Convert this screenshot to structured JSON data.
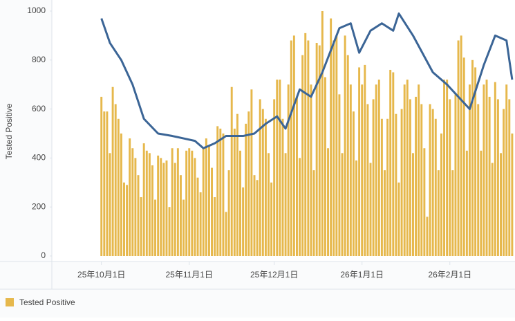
{
  "chart_data": {
    "type": "bar",
    "ylabel": "Tested Positive",
    "ylim": [
      -20,
      1010
    ],
    "yticks": [
      0,
      200,
      400,
      600,
      800,
      1000
    ],
    "xlim": [
      -17.5,
      146
    ],
    "xticks": [
      {
        "value": 0,
        "label": "25年10月1日"
      },
      {
        "value": 31,
        "label": "25年11月1日"
      },
      {
        "value": 61,
        "label": "25年12月1日"
      },
      {
        "value": 92,
        "label": "26年1月1日"
      },
      {
        "value": 123,
        "label": "26年2月1日"
      }
    ],
    "series": [
      {
        "name": "Tested Positive",
        "type": "bar",
        "color": "#e6b84c",
        "values": [
          650,
          590,
          590,
          420,
          690,
          620,
          560,
          500,
          300,
          290,
          480,
          440,
          400,
          330,
          240,
          460,
          430,
          420,
          370,
          230,
          410,
          400,
          380,
          390,
          200,
          440,
          380,
          440,
          330,
          230,
          430,
          440,
          430,
          400,
          320,
          260,
          440,
          480,
          450,
          360,
          240,
          530,
          520,
          500,
          180,
          350,
          690,
          520,
          580,
          430,
          280,
          540,
          590,
          680,
          330,
          310,
          640,
          600,
          560,
          420,
          300,
          640,
          720,
          720,
          560,
          420,
          700,
          880,
          900,
          650,
          400,
          820,
          910,
          880,
          700,
          350,
          870,
          860,
          1000,
          730,
          440,
          970,
          880,
          900,
          660,
          420,
          900,
          820,
          700,
          590,
          390,
          770,
          700,
          780,
          620,
          380,
          640,
          700,
          720,
          560,
          350,
          560,
          760,
          750,
          580,
          300,
          600,
          700,
          720,
          640,
          420,
          650,
          700,
          620,
          440,
          160,
          620,
          600,
          560,
          350,
          500,
          720,
          720,
          640,
          350,
          660,
          880,
          900,
          810,
          430,
          700,
          800,
          770,
          620,
          430,
          700,
          720,
          650,
          380,
          710,
          640,
          420,
          600,
          700,
          640,
          500
        ]
      },
      {
        "type": "line",
        "color": "#3b6596",
        "x": [
          0,
          3,
          7,
          11,
          15,
          20,
          25,
          29,
          33,
          36,
          40,
          44,
          50,
          54,
          58,
          62,
          65,
          70,
          74,
          78,
          84,
          88,
          91,
          95,
          99,
          103,
          105,
          110,
          117,
          122,
          130,
          135,
          139,
          143,
          145
        ],
        "values": [
          970,
          870,
          800,
          700,
          560,
          500,
          490,
          480,
          470,
          440,
          460,
          490,
          490,
          500,
          540,
          570,
          520,
          680,
          650,
          750,
          930,
          950,
          830,
          920,
          950,
          920,
          990,
          900,
          750,
          700,
          600,
          780,
          900,
          880,
          720
        ]
      }
    ],
    "grid": false,
    "legend": "bottom-left"
  }
}
